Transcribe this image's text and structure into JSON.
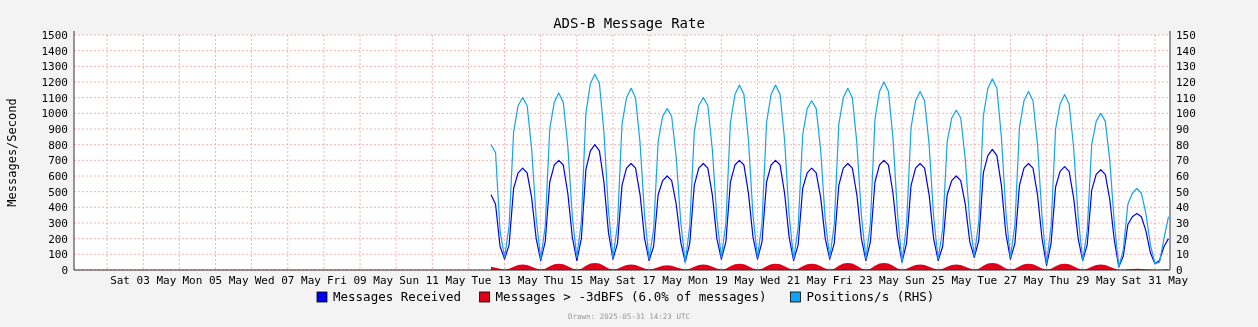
{
  "chart_data": {
    "type": "line",
    "title": "ADS-B Message Rate",
    "ylabel": "Messages/Second",
    "grid": true,
    "legend": "bottom",
    "annotations": [
      "Drawn: 2025-05-31 14:23 UTC"
    ],
    "xlim": [
      "2025-05-01T02:00",
      "2025-05-31T10:00"
    ],
    "xticks": [
      {
        "value": "2025-05-02",
        "label": null
      },
      {
        "value": "2025-05-03",
        "label": "Sat 03 May"
      },
      {
        "value": "2025-05-04",
        "label": null
      },
      {
        "value": "2025-05-05",
        "label": "Mon 05 May"
      },
      {
        "value": "2025-05-06",
        "label": null
      },
      {
        "value": "2025-05-07",
        "label": "Wed 07 May"
      },
      {
        "value": "2025-05-08",
        "label": null
      },
      {
        "value": "2025-05-09",
        "label": "Fri 09 May"
      },
      {
        "value": "2025-05-10",
        "label": null
      },
      {
        "value": "2025-05-11",
        "label": "Sun 11 May"
      },
      {
        "value": "2025-05-12",
        "label": null
      },
      {
        "value": "2025-05-13",
        "label": "Tue 13 May"
      },
      {
        "value": "2025-05-14",
        "label": null
      },
      {
        "value": "2025-05-15",
        "label": "Thu 15 May"
      },
      {
        "value": "2025-05-16",
        "label": null
      },
      {
        "value": "2025-05-17",
        "label": "Sat 17 May"
      },
      {
        "value": "2025-05-18",
        "label": null
      },
      {
        "value": "2025-05-19",
        "label": "Mon 19 May"
      },
      {
        "value": "2025-05-20",
        "label": null
      },
      {
        "value": "2025-05-21",
        "label": "Wed 21 May"
      },
      {
        "value": "2025-05-22",
        "label": null
      },
      {
        "value": "2025-05-23",
        "label": "Fri 23 May"
      },
      {
        "value": "2025-05-24",
        "label": null
      },
      {
        "value": "2025-05-25",
        "label": "Sun 25 May"
      },
      {
        "value": "2025-05-26",
        "label": null
      },
      {
        "value": "2025-05-27",
        "label": "Tue 27 May"
      },
      {
        "value": "2025-05-28",
        "label": null
      },
      {
        "value": "2025-05-29",
        "label": "Thu 29 May"
      },
      {
        "value": "2025-05-30",
        "label": null
      },
      {
        "value": "2025-05-31",
        "label": "Sat 31 May"
      }
    ],
    "ylim": [
      0,
      1500
    ],
    "yticks": [
      0,
      100,
      200,
      300,
      400,
      500,
      600,
      700,
      800,
      900,
      1000,
      1100,
      1200,
      1300,
      1400,
      1500
    ],
    "y2lim": [
      0,
      150
    ],
    "y2ticks": [
      0,
      10,
      20,
      30,
      40,
      50,
      60,
      70,
      80,
      90,
      100,
      110,
      120,
      130,
      140,
      150
    ],
    "x": [
      "2025-05-12T15:00",
      "2025-05-12T18:00",
      "2025-05-12T21:00",
      "2025-05-13T00:00",
      "2025-05-13T03:00",
      "2025-05-13T06:00",
      "2025-05-13T09:00",
      "2025-05-13T12:00",
      "2025-05-13T15:00",
      "2025-05-13T18:00",
      "2025-05-13T21:00",
      "2025-05-14T00:00",
      "2025-05-14T03:00",
      "2025-05-14T06:00",
      "2025-05-14T09:00",
      "2025-05-14T12:00",
      "2025-05-14T15:00",
      "2025-05-14T18:00",
      "2025-05-14T21:00",
      "2025-05-15T00:00",
      "2025-05-15T03:00",
      "2025-05-15T06:00",
      "2025-05-15T09:00",
      "2025-05-15T12:00",
      "2025-05-15T15:00",
      "2025-05-15T18:00",
      "2025-05-15T21:00",
      "2025-05-16T00:00",
      "2025-05-16T03:00",
      "2025-05-16T06:00",
      "2025-05-16T09:00",
      "2025-05-16T12:00",
      "2025-05-16T15:00",
      "2025-05-16T18:00",
      "2025-05-16T21:00",
      "2025-05-17T00:00",
      "2025-05-17T03:00",
      "2025-05-17T06:00",
      "2025-05-17T09:00",
      "2025-05-17T12:00",
      "2025-05-17T15:00",
      "2025-05-17T18:00",
      "2025-05-17T21:00",
      "2025-05-18T00:00",
      "2025-05-18T03:00",
      "2025-05-18T06:00",
      "2025-05-18T09:00",
      "2025-05-18T12:00",
      "2025-05-18T15:00",
      "2025-05-18T18:00",
      "2025-05-18T21:00",
      "2025-05-19T00:00",
      "2025-05-19T03:00",
      "2025-05-19T06:00",
      "2025-05-19T09:00",
      "2025-05-19T12:00",
      "2025-05-19T15:00",
      "2025-05-19T18:00",
      "2025-05-19T21:00",
      "2025-05-20T00:00",
      "2025-05-20T03:00",
      "2025-05-20T06:00",
      "2025-05-20T09:00",
      "2025-05-20T12:00",
      "2025-05-20T15:00",
      "2025-05-20T18:00",
      "2025-05-20T21:00",
      "2025-05-21T00:00",
      "2025-05-21T03:00",
      "2025-05-21T06:00",
      "2025-05-21T09:00",
      "2025-05-21T12:00",
      "2025-05-21T15:00",
      "2025-05-21T18:00",
      "2025-05-21T21:00",
      "2025-05-22T00:00",
      "2025-05-22T03:00",
      "2025-05-22T06:00",
      "2025-05-22T09:00",
      "2025-05-22T12:00",
      "2025-05-22T15:00",
      "2025-05-22T18:00",
      "2025-05-22T21:00",
      "2025-05-23T00:00",
      "2025-05-23T03:00",
      "2025-05-23T06:00",
      "2025-05-23T09:00",
      "2025-05-23T12:00",
      "2025-05-23T15:00",
      "2025-05-23T18:00",
      "2025-05-23T21:00",
      "2025-05-24T00:00",
      "2025-05-24T03:00",
      "2025-05-24T06:00",
      "2025-05-24T09:00",
      "2025-05-24T12:00",
      "2025-05-24T15:00",
      "2025-05-24T18:00",
      "2025-05-24T21:00",
      "2025-05-25T00:00",
      "2025-05-25T03:00",
      "2025-05-25T06:00",
      "2025-05-25T09:00",
      "2025-05-25T12:00",
      "2025-05-25T15:00",
      "2025-05-25T18:00",
      "2025-05-25T21:00",
      "2025-05-26T00:00",
      "2025-05-26T03:00",
      "2025-05-26T06:00",
      "2025-05-26T09:00",
      "2025-05-26T12:00",
      "2025-05-26T15:00",
      "2025-05-26T18:00",
      "2025-05-26T21:00",
      "2025-05-27T00:00",
      "2025-05-27T03:00",
      "2025-05-27T06:00",
      "2025-05-27T09:00",
      "2025-05-27T12:00",
      "2025-05-27T15:00",
      "2025-05-27T18:00",
      "2025-05-27T21:00",
      "2025-05-28T00:00",
      "2025-05-28T03:00",
      "2025-05-28T06:00",
      "2025-05-28T09:00",
      "2025-05-28T12:00",
      "2025-05-28T15:00",
      "2025-05-28T18:00",
      "2025-05-28T21:00",
      "2025-05-29T00:00",
      "2025-05-29T03:00",
      "2025-05-29T06:00",
      "2025-05-29T09:00",
      "2025-05-29T12:00",
      "2025-05-29T15:00",
      "2025-05-29T18:00",
      "2025-05-29T21:00",
      "2025-05-30T00:00",
      "2025-05-30T03:00",
      "2025-05-30T06:00",
      "2025-05-30T09:00",
      "2025-05-30T12:00",
      "2025-05-30T15:00",
      "2025-05-30T18:00",
      "2025-05-30T21:00",
      "2025-05-31T00:00",
      "2025-05-31T03:00",
      "2025-05-31T06:00",
      "2025-05-31T09:00"
    ],
    "series": [
      {
        "name": "Messages Received",
        "color": "#0000f0",
        "values": [
          480,
          420,
          150,
          70,
          160,
          520,
          620,
          650,
          620,
          460,
          200,
          60,
          180,
          560,
          670,
          700,
          670,
          490,
          210,
          60,
          200,
          640,
          760,
          800,
          760,
          560,
          240,
          70,
          170,
          540,
          650,
          680,
          650,
          480,
          200,
          60,
          150,
          480,
          570,
          600,
          570,
          420,
          180,
          50,
          170,
          540,
          650,
          680,
          650,
          480,
          200,
          70,
          180,
          560,
          670,
          700,
          670,
          490,
          210,
          70,
          180,
          560,
          670,
          700,
          670,
          490,
          210,
          60,
          160,
          520,
          620,
          650,
          620,
          460,
          200,
          70,
          170,
          540,
          650,
          680,
          650,
          480,
          200,
          60,
          180,
          560,
          670,
          700,
          670,
          490,
          210,
          50,
          170,
          540,
          650,
          680,
          650,
          480,
          200,
          60,
          150,
          480,
          570,
          600,
          570,
          420,
          180,
          80,
          190,
          620,
          730,
          770,
          730,
          540,
          230,
          70,
          170,
          540,
          650,
          680,
          650,
          480,
          200,
          30,
          170,
          530,
          630,
          660,
          630,
          460,
          200,
          60,
          160,
          510,
          610,
          640,
          610,
          450,
          190,
          20,
          90,
          290,
          340,
          360,
          340,
          250,
          110,
          40,
          60,
          150,
          200
        ]
      },
      {
        "name": "Messages > -3dBFS (6.0% of messages)",
        "type": "area",
        "color": "#e0001c",
        "values": [
          20,
          15,
          8,
          3,
          8,
          21,
          32,
          35,
          32,
          21,
          10,
          3,
          8,
          24,
          36,
          40,
          36,
          24,
          10,
          3,
          8,
          27,
          41,
          45,
          41,
          27,
          10,
          3,
          8,
          21,
          32,
          35,
          32,
          21,
          10,
          3,
          8,
          18,
          27,
          30,
          27,
          18,
          10,
          3,
          8,
          21,
          32,
          35,
          32,
          21,
          10,
          3,
          8,
          24,
          36,
          40,
          36,
          24,
          10,
          3,
          8,
          24,
          36,
          40,
          36,
          24,
          10,
          3,
          8,
          24,
          36,
          40,
          36,
          24,
          10,
          3,
          8,
          27,
          41,
          45,
          41,
          27,
          10,
          3,
          8,
          27,
          41,
          45,
          41,
          27,
          10,
          3,
          8,
          21,
          32,
          35,
          32,
          21,
          10,
          3,
          8,
          21,
          32,
          35,
          32,
          21,
          10,
          3,
          8,
          27,
          41,
          45,
          41,
          27,
          10,
          3,
          8,
          24,
          36,
          40,
          36,
          24,
          10,
          3,
          8,
          24,
          36,
          40,
          36,
          24,
          10,
          3,
          8,
          21,
          32,
          35,
          32,
          21,
          10,
          1,
          2,
          5,
          7,
          8,
          7,
          5,
          3,
          1,
          1,
          3,
          5
        ]
      },
      {
        "name": "Positions/s (RHS)",
        "axis": "y2",
        "color": "#12a4f0",
        "values": [
          80,
          75,
          25,
          8,
          28,
          88,
          105,
          110,
          105,
          77,
          33,
          7,
          28,
          90,
          107,
          113,
          107,
          79,
          34,
          8,
          31,
          100,
          119,
          125,
          119,
          88,
          38,
          8,
          29,
          93,
          110,
          116,
          110,
          81,
          35,
          7,
          26,
          82,
          98,
          103,
          98,
          72,
          31,
          5,
          28,
          88,
          105,
          110,
          105,
          77,
          33,
          8,
          30,
          94,
          112,
          118,
          112,
          83,
          35,
          8,
          30,
          94,
          112,
          118,
          112,
          83,
          35,
          7,
          27,
          86,
          103,
          108,
          103,
          76,
          32,
          8,
          29,
          93,
          110,
          116,
          110,
          81,
          35,
          7,
          30,
          96,
          114,
          120,
          114,
          84,
          36,
          5,
          29,
          91,
          108,
          114,
          108,
          80,
          34,
          7,
          26,
          82,
          97,
          102,
          97,
          71,
          31,
          9,
          31,
          98,
          116,
          122,
          116,
          85,
          37,
          8,
          29,
          91,
          108,
          114,
          108,
          80,
          34,
          4,
          28,
          90,
          106,
          112,
          106,
          78,
          34,
          6,
          25,
          80,
          95,
          100,
          95,
          70,
          30,
          2,
          13,
          42,
          49,
          52,
          49,
          36,
          16,
          4,
          5,
          20,
          34
        ]
      }
    ]
  }
}
